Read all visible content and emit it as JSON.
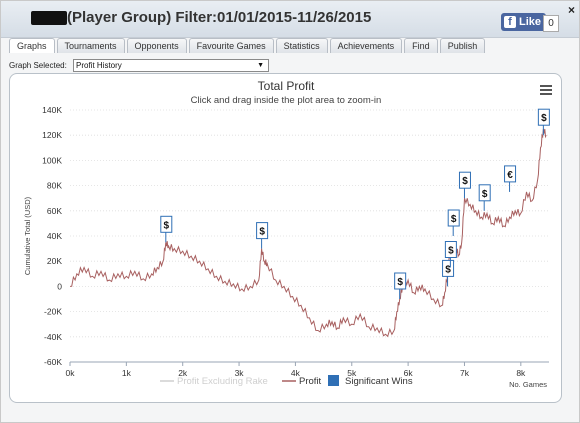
{
  "window": {
    "title": "(Player Group) Filter:01/01/2015-11/26/2015",
    "close": "×",
    "fb_like": "Like",
    "fb_logo": "f",
    "fb_count": "0"
  },
  "tabs": [
    {
      "label": "Graphs",
      "active": true
    },
    {
      "label": "Tournaments"
    },
    {
      "label": "Opponents"
    },
    {
      "label": "Favourite Games"
    },
    {
      "label": "Statistics"
    },
    {
      "label": "Achievements"
    },
    {
      "label": "Find"
    },
    {
      "label": "Publish"
    }
  ],
  "graph_selector": {
    "label": "Graph Selected:",
    "value": "Profit History"
  },
  "chart_data": {
    "type": "line",
    "title": "Total Profit",
    "subtitle": "Click and drag inside the plot area to zoom-in",
    "ylabel": "Cumulative Total (USD)",
    "xlabel": "No. Games",
    "xlim": [
      0,
      8500
    ],
    "ylim": [
      -60000,
      140000
    ],
    "x_ticks": [
      "0k",
      "1k",
      "2k",
      "3k",
      "4k",
      "5k",
      "6k",
      "7k",
      "8k"
    ],
    "y_ticks": [
      "-60K",
      "-40K",
      "-20K",
      "0",
      "20K",
      "40K",
      "60K",
      "80K",
      "100K",
      "120K",
      "140K"
    ],
    "grid": true,
    "legend_position": "bottom-center",
    "legend": [
      "Profit Excluding Rake",
      "Profit",
      "Significant Wins"
    ],
    "colors": {
      "profit": "#a86060",
      "profit_ex_rake": "#cfcfcf",
      "flag": "#2f6fb5",
      "grid": "#dddddd"
    },
    "series": [
      {
        "name": "Profit",
        "x": [
          0,
          120,
          250,
          400,
          550,
          700,
          850,
          1000,
          1150,
          1300,
          1450,
          1550,
          1650,
          1700,
          1750,
          1850,
          2000,
          2150,
          2300,
          2450,
          2600,
          2750,
          2900,
          3050,
          3200,
          3350,
          3400,
          3450,
          3500,
          3650,
          3800,
          3950,
          4100,
          4250,
          4400,
          4550,
          4650,
          4750,
          4850,
          5000,
          5150,
          5300,
          5450,
          5600,
          5750,
          5800,
          5850,
          5900,
          6000,
          6100,
          6200,
          6300,
          6450,
          6600,
          6650,
          6700,
          6750,
          6800,
          6850,
          6900,
          6950,
          7000,
          7100,
          7200,
          7300,
          7400,
          7500,
          7600,
          7700,
          7800,
          7900,
          8000,
          8100,
          8200,
          8300,
          8350,
          8400,
          8450
        ],
        "y": [
          0,
          10000,
          15000,
          8000,
          12000,
          5000,
          10000,
          8000,
          12000,
          6000,
          10000,
          15000,
          20000,
          35000,
          32000,
          30000,
          28000,
          24000,
          20000,
          14000,
          8000,
          4000,
          2000,
          -2000,
          0,
          5000,
          30000,
          20000,
          18000,
          5000,
          0,
          -8000,
          -15000,
          -25000,
          -35000,
          -30000,
          -28000,
          -33000,
          -25000,
          -30000,
          -22000,
          -32000,
          -33000,
          -38000,
          -35000,
          -20000,
          -10000,
          0,
          5000,
          -5000,
          0,
          -2000,
          -10000,
          -15000,
          -5000,
          10000,
          30000,
          25000,
          30000,
          25000,
          35000,
          70000,
          65000,
          60000,
          55000,
          58000,
          50000,
          55000,
          48000,
          55000,
          60000,
          58000,
          75000,
          68000,
          85000,
          110000,
          125000,
          120000
        ]
      },
      {
        "name": "Profit Excluding Rake",
        "x": [],
        "y": []
      }
    ],
    "significant_wins": [
      {
        "x": 1700,
        "y": 35000,
        "symbol": "$"
      },
      {
        "x": 3400,
        "y": 30000,
        "symbol": "$"
      },
      {
        "x": 5850,
        "y": -10000,
        "symbol": "$"
      },
      {
        "x": 6700,
        "y": 0,
        "symbol": "$"
      },
      {
        "x": 6750,
        "y": 15000,
        "symbol": "$"
      },
      {
        "x": 6800,
        "y": 40000,
        "symbol": "$"
      },
      {
        "x": 7000,
        "y": 70000,
        "symbol": "$"
      },
      {
        "x": 7350,
        "y": 60000,
        "symbol": "$"
      },
      {
        "x": 7800,
        "y": 75000,
        "symbol": "€"
      },
      {
        "x": 8400,
        "y": 120000,
        "symbol": "$"
      }
    ]
  }
}
